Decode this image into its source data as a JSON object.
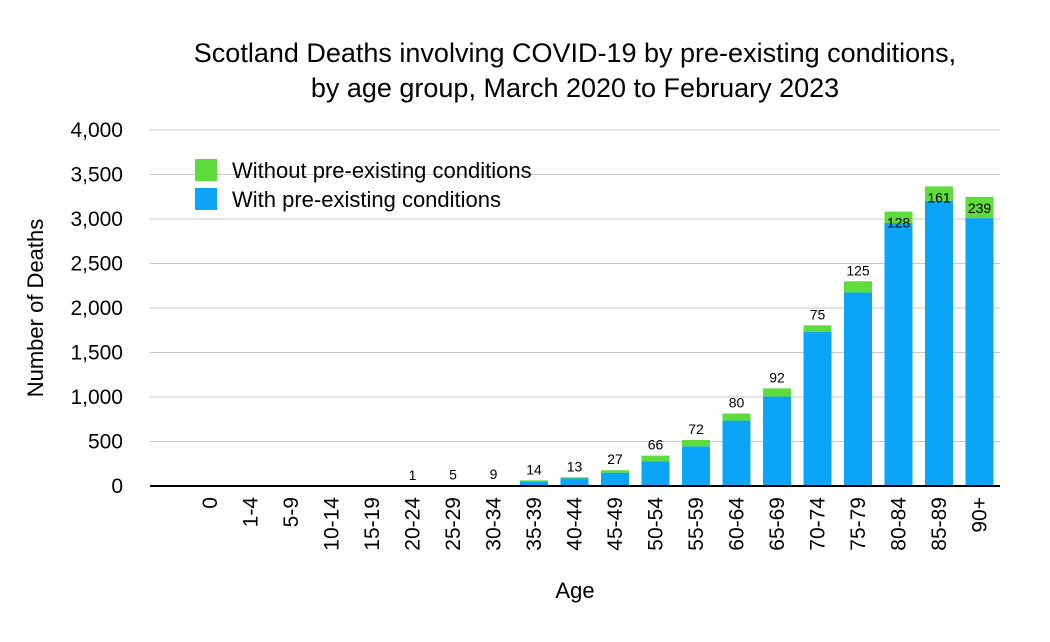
{
  "chart_data": {
    "type": "bar",
    "stacked": true,
    "title": "Scotland Deaths involving COVID-19 by pre-existing conditions,",
    "subtitle": "by age group, March 2020 to February 2023",
    "xlabel": "Age",
    "ylabel": "Number of Deaths",
    "ylim": [
      0,
      4000
    ],
    "yticks": [
      "0",
      "500",
      "1,000",
      "1,500",
      "2,000",
      "2,500",
      "3,000",
      "3,500",
      "4,000"
    ],
    "ytick_values": [
      0,
      500,
      1000,
      1500,
      2000,
      2500,
      3000,
      3500,
      4000
    ],
    "grid": true,
    "legend_position": "top-left",
    "categories": [
      "0",
      "1-4",
      "5-9",
      "10-14",
      "15-19",
      "20-24",
      "25-29",
      "30-34",
      "35-39",
      "40-44",
      "45-49",
      "50-54",
      "55-59",
      "60-64",
      "65-69",
      "70-74",
      "75-79",
      "80-84",
      "85-89",
      "90+"
    ],
    "series": [
      {
        "name": "With pre-existing conditions",
        "color": "#0aa5f7",
        "values": [
          0,
          0,
          0,
          0,
          0,
          0,
          0,
          0,
          50,
          85,
          150,
          275,
          445,
          735,
          1005,
          1730,
          2175,
          2955,
          3205,
          3010
        ]
      },
      {
        "name": "Without pre-existing conditions",
        "color": "#5ddc3b",
        "values": [
          0,
          0,
          0,
          0,
          0,
          1,
          5,
          9,
          14,
          13,
          27,
          66,
          72,
          80,
          92,
          75,
          125,
          128,
          161,
          239
        ]
      }
    ],
    "data_labels": [
      "",
      "",
      "",
      "",
      "",
      "1",
      "5",
      "9",
      "14",
      "13",
      "27",
      "66",
      "72",
      "80",
      "92",
      "75",
      "125",
      "128",
      "161",
      "239"
    ]
  }
}
